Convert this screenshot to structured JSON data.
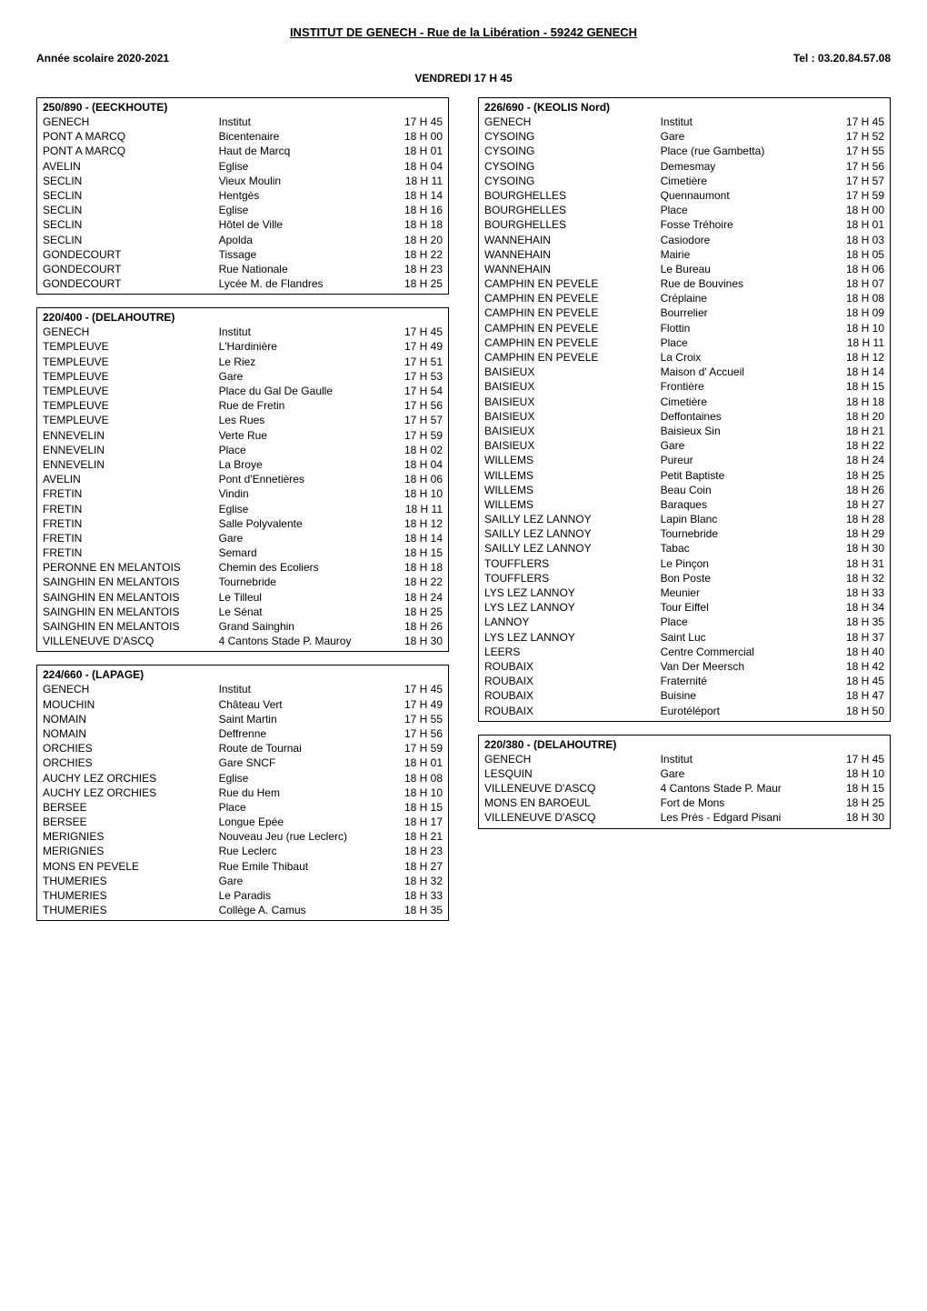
{
  "header": {
    "title": "INSTITUT DE GENECH - Rue de la Libération - 59242 GENECH",
    "year": "Année scolaire 2020-2021",
    "tel": "Tel : 03.20.84.57.08",
    "day": "VENDREDI 17 H 45"
  },
  "left_blocks": [
    {
      "title": "250/890 - (EECKHOUTE)",
      "rows": [
        [
          "GENECH",
          "Institut",
          "17 H 45"
        ],
        [
          "PONT A MARCQ",
          "Bicentenaire",
          "18 H 00"
        ],
        [
          "PONT A MARCQ",
          "Haut de Marcq",
          "18 H 01"
        ],
        [
          "AVELIN",
          "Eglise",
          "18 H 04"
        ],
        [
          "SECLIN",
          "Vieux Moulin",
          "18 H 11"
        ],
        [
          "SECLIN",
          "Hentgès",
          "18 H 14"
        ],
        [
          "SECLIN",
          "Eglise",
          "18 H 16"
        ],
        [
          "SECLIN",
          "Hôtel de Ville",
          "18 H 18"
        ],
        [
          "SECLIN",
          "Apolda",
          "18 H 20"
        ],
        [
          "GONDECOURT",
          "Tissage",
          "18 H 22"
        ],
        [
          "GONDECOURT",
          "Rue Nationale",
          "18 H 23"
        ],
        [
          "GONDECOURT",
          "Lycée M. de Flandres",
          "18 H 25"
        ]
      ]
    },
    {
      "title": "220/400 - (DELAHOUTRE)",
      "rows": [
        [
          "GENECH",
          "Institut",
          "17 H 45"
        ],
        [
          "TEMPLEUVE",
          "L'Hardinière",
          "17 H 49"
        ],
        [
          "TEMPLEUVE",
          "Le Riez",
          "17 H 51"
        ],
        [
          "TEMPLEUVE",
          "Gare",
          "17 H 53"
        ],
        [
          "TEMPLEUVE",
          "Place du Gal De Gaulle",
          "17 H 54"
        ],
        [
          "TEMPLEUVE",
          "Rue de Fretin",
          "17 H 56"
        ],
        [
          "TEMPLEUVE",
          "Les Rues",
          "17 H 57"
        ],
        [
          "ENNEVELIN",
          "Verte Rue",
          "17 H 59"
        ],
        [
          "ENNEVELIN",
          "Place",
          "18 H 02"
        ],
        [
          "ENNEVELIN",
          "La Broye",
          "18 H 04"
        ],
        [
          "AVELIN",
          "Pont d'Ennetières",
          "18 H 06"
        ],
        [
          "FRETIN",
          "Vindin",
          "18 H 10"
        ],
        [
          "FRETIN",
          "Eglise",
          "18 H 11"
        ],
        [
          "FRETIN",
          "Salle Polyvalente",
          "18 H 12"
        ],
        [
          "FRETIN",
          "Gare",
          "18 H 14"
        ],
        [
          "FRETIN",
          "Semard",
          "18 H 15"
        ],
        [
          "PERONNE EN MELANTOIS",
          "Chemin des Ecoliers",
          "18 H 18"
        ],
        [
          "SAINGHIN EN MELANTOIS",
          "Tournebride",
          "18 H 22"
        ],
        [
          "SAINGHIN EN MELANTOIS",
          "Le Tilleul",
          "18 H 24"
        ],
        [
          "SAINGHIN EN MELANTOIS",
          "Le Sénat",
          "18 H 25"
        ],
        [
          "SAINGHIN EN MELANTOIS",
          "Grand Sainghin",
          "18 H 26"
        ],
        [
          "VILLENEUVE D'ASCQ",
          "4 Cantons Stade P. Mauroy",
          "18 H 30"
        ]
      ]
    },
    {
      "title": "224/660 - (LAPAGE)",
      "rows": [
        [
          "GENECH",
          "Institut",
          "17 H 45"
        ],
        [
          "MOUCHIN",
          "Château Vert",
          "17 H 49"
        ],
        [
          "NOMAIN",
          "Saint Martin",
          "17 H 55"
        ],
        [
          "NOMAIN",
          "Deffrenne",
          "17 H 56"
        ],
        [
          "ORCHIES",
          "Route de Tournai",
          "17 H 59"
        ],
        [
          "ORCHIES",
          "Gare SNCF",
          "18 H 01"
        ],
        [
          "AUCHY LEZ ORCHIES",
          "Eglise",
          "18 H 08"
        ],
        [
          "AUCHY LEZ ORCHIES",
          "Rue du Hem",
          "18 H 10"
        ],
        [
          "BERSEE",
          "Place",
          "18 H 15"
        ],
        [
          "BERSEE",
          "Longue Epée",
          "18 H 17"
        ],
        [
          "MERIGNIES",
          "Nouveau Jeu (rue Leclerc)",
          "18 H 21"
        ],
        [
          "MERIGNIES",
          "Rue Leclerc",
          "18 H 23"
        ],
        [
          "MONS EN PEVELE",
          "Rue Emile Thibaut",
          "18 H 27"
        ],
        [
          "THUMERIES",
          "Gare",
          "18 H 32"
        ],
        [
          "THUMERIES",
          "Le Paradis",
          "18 H 33"
        ],
        [
          "THUMERIES",
          "Collège A. Camus",
          "18 H 35"
        ]
      ]
    }
  ],
  "right_blocks": [
    {
      "title": "226/690 - (KEOLIS Nord)",
      "rows": [
        [
          "GENECH",
          "Institut",
          "17 H 45"
        ],
        [
          "CYSOING",
          "Gare",
          "17 H 52"
        ],
        [
          "CYSOING",
          "Place (rue Gambetta)",
          "17 H 55"
        ],
        [
          "CYSOING",
          "Demesmay",
          "17 H 56"
        ],
        [
          "CYSOING",
          "Cimetière",
          "17 H 57"
        ],
        [
          "BOURGHELLES",
          "Quennaumont",
          "17 H 59"
        ],
        [
          "BOURGHELLES",
          "Place",
          "18 H 00"
        ],
        [
          "BOURGHELLES",
          "Fosse Tréhoire",
          "18 H 01"
        ],
        [
          "WANNEHAIN",
          "Casiodore",
          "18 H 03"
        ],
        [
          "WANNEHAIN",
          "Mairie",
          "18 H 05"
        ],
        [
          "WANNEHAIN",
          "Le Bureau",
          "18 H 06"
        ],
        [
          "CAMPHIN EN PEVELE",
          "Rue de Bouvines",
          "18 H 07"
        ],
        [
          "CAMPHIN EN PEVELE",
          "Créplaine",
          "18 H 08"
        ],
        [
          "CAMPHIN EN PEVELE",
          "Bourrelier",
          "18 H 09"
        ],
        [
          "CAMPHIN EN PEVELE",
          "Flottin",
          "18 H 10"
        ],
        [
          "CAMPHIN EN PEVELE",
          "Place",
          "18 H 11"
        ],
        [
          "CAMPHIN EN PEVELE",
          "La Croix",
          "18 H 12"
        ],
        [
          "BAISIEUX",
          "Maison d' Accueil",
          "18 H 14"
        ],
        [
          "BAISIEUX",
          "Frontière",
          "18 H 15"
        ],
        [
          "BAISIEUX",
          "Cimetière",
          "18 H 18"
        ],
        [
          "BAISIEUX",
          "Deffontaines",
          "18 H 20"
        ],
        [
          "BAISIEUX",
          "Baisieux Sin",
          "18 H 21"
        ],
        [
          "BAISIEUX",
          "Gare",
          "18 H 22"
        ],
        [
          "WILLEMS",
          "Pureur",
          "18 H 24"
        ],
        [
          "WILLEMS",
          "Petit Baptiste",
          "18 H 25"
        ],
        [
          "WILLEMS",
          "Beau Coin",
          "18 H 26"
        ],
        [
          "WILLEMS",
          "Baraques",
          "18 H 27"
        ],
        [
          "SAILLY LEZ LANNOY",
          "Lapin Blanc",
          "18 H 28"
        ],
        [
          "SAILLY LEZ LANNOY",
          "Tournebride",
          "18 H 29"
        ],
        [
          "SAILLY LEZ LANNOY",
          "Tabac",
          "18 H 30"
        ],
        [
          "TOUFFLERS",
          "Le Pinçon",
          "18 H 31"
        ],
        [
          "TOUFFLERS",
          "Bon Poste",
          "18 H 32"
        ],
        [
          "LYS LEZ LANNOY",
          "Meunier",
          "18 H 33"
        ],
        [
          "LYS LEZ LANNOY",
          "Tour Eiffel",
          "18 H 34"
        ],
        [
          "LANNOY",
          "Place",
          "18 H 35"
        ],
        [
          "LYS LEZ LANNOY",
          "Saint Luc",
          "18 H 37"
        ],
        [
          "LEERS",
          "Centre Commercial",
          "18 H 40"
        ],
        [
          "ROUBAIX",
          "Van Der Meersch",
          "18 H 42"
        ],
        [
          "ROUBAIX",
          "Fraternité",
          "18 H 45"
        ],
        [
          "ROUBAIX",
          "Buisine",
          "18 H 47"
        ],
        [
          "ROUBAIX",
          "Eurotéléport",
          "18 H 50"
        ]
      ]
    },
    {
      "title": "220/380 - (DELAHOUTRE)",
      "rows": [
        [
          "GENECH",
          "Institut",
          "17 H 45"
        ],
        [
          "LESQUIN",
          "Gare",
          "18 H 10"
        ],
        [
          "VILLENEUVE D'ASCQ",
          "4 Cantons Stade P. Maur",
          "18 H 15"
        ],
        [
          "MONS EN BAROEUL",
          "Fort de Mons",
          "18 H 25"
        ],
        [
          "VILLENEUVE D'ASCQ",
          "Les Près - Edgard Pisani",
          "18 H 30"
        ]
      ]
    }
  ]
}
